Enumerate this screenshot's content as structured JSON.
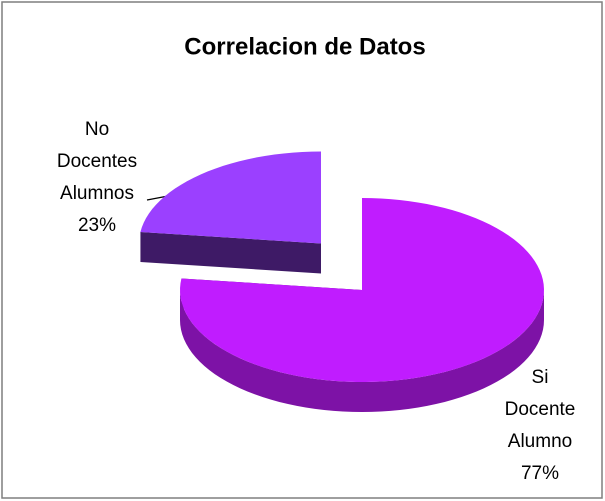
{
  "chart_data": {
    "type": "pie3d",
    "title": "Correlacion de Datos",
    "categories": [
      "Si Docente Alumno",
      "No Docentes Alumnos"
    ],
    "values": [
      77,
      23
    ],
    "value_labels": [
      "77%",
      "23%"
    ],
    "colors": [
      "#c01cff",
      "#9b40ff"
    ]
  }
}
